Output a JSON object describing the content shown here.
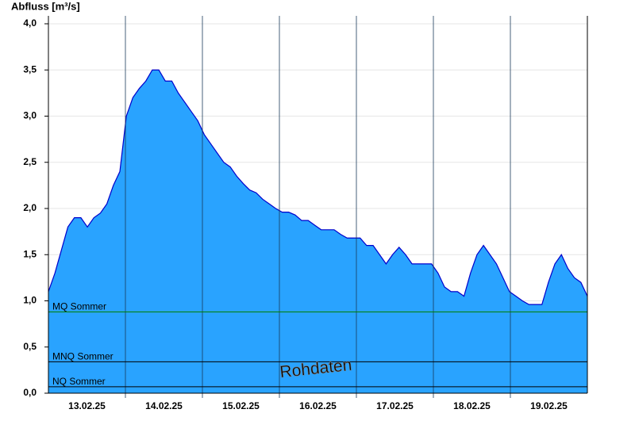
{
  "chart_data": {
    "type": "area",
    "y_axis_label": "Abfluss [m³/s]",
    "x_labels": [
      "13.02.25",
      "14.02.25",
      "15.02.25",
      "16.02.25",
      "17.02.25",
      "18.02.25",
      "19.02.25"
    ],
    "values": [
      1.1,
      1.3,
      1.55,
      1.8,
      1.9,
      1.9,
      1.8,
      1.9,
      1.95,
      2.05,
      2.25,
      2.4,
      3.0,
      3.2,
      3.3,
      3.38,
      3.5,
      3.5,
      3.38,
      3.38,
      3.25,
      3.15,
      3.05,
      2.95,
      2.8,
      2.7,
      2.6,
      2.5,
      2.45,
      2.35,
      2.27,
      2.2,
      2.17,
      2.1,
      2.05,
      2.0,
      1.96,
      1.96,
      1.93,
      1.87,
      1.87,
      1.82,
      1.77,
      1.77,
      1.77,
      1.72,
      1.68,
      1.68,
      1.68,
      1.6,
      1.6,
      1.5,
      1.4,
      1.5,
      1.58,
      1.5,
      1.4,
      1.4,
      1.4,
      1.4,
      1.3,
      1.15,
      1.1,
      1.1,
      1.05,
      1.3,
      1.5,
      1.6,
      1.5,
      1.4,
      1.25,
      1.1,
      1.05,
      1.0,
      0.96,
      0.96,
      0.96,
      1.2,
      1.4,
      1.5,
      1.35,
      1.25,
      1.2,
      1.05
    ],
    "color": "#29a3ff",
    "line_color": "#0000cc",
    "ylim": [
      0,
      4
    ],
    "yticks": [
      {
        "value": 0,
        "label": "0,0"
      },
      {
        "value": 0.5,
        "label": "0,5"
      },
      {
        "value": 1,
        "label": "1,0"
      },
      {
        "value": 1.5,
        "label": "1,5"
      },
      {
        "value": 2,
        "label": "2,0"
      },
      {
        "value": 2.5,
        "label": "2,5"
      },
      {
        "value": 3,
        "label": "3,0"
      },
      {
        "value": 3.5,
        "label": "3,5"
      },
      {
        "value": 4,
        "label": "4,0"
      }
    ],
    "grid": true,
    "reference_lines": [
      {
        "name": "MQ Sommer",
        "value": 0.88,
        "color": "#008000"
      },
      {
        "name": "MNQ Sommer",
        "value": 0.34,
        "color": "#000000"
      },
      {
        "name": "NQ Sommer",
        "value": 0.07,
        "color": "#000000"
      }
    ],
    "watermark": "Rohdaten"
  }
}
